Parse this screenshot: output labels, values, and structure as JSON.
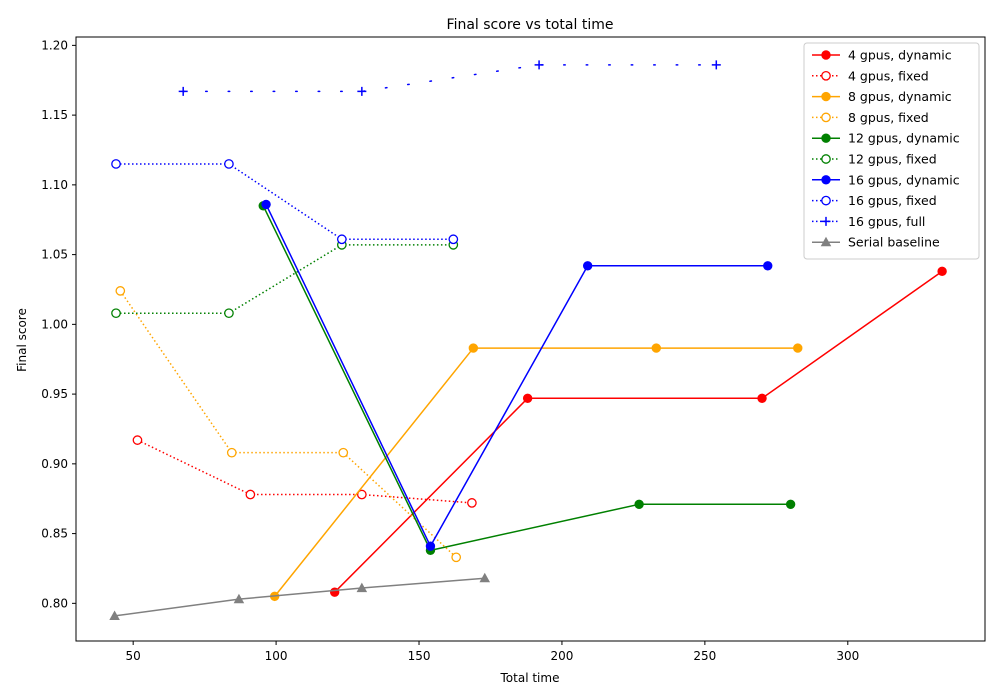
{
  "chart_data": {
    "type": "line",
    "title": "Final score vs total time",
    "xlabel": "Total time",
    "ylabel": "Final score",
    "xlim": [
      30,
      348
    ],
    "ylim": [
      0.773,
      1.206
    ],
    "xticks": [
      50,
      100,
      150,
      200,
      250,
      300
    ],
    "yticks": [
      0.8,
      0.85,
      0.9,
      0.95,
      1.0,
      1.05,
      1.1,
      1.15,
      1.2
    ],
    "grid": false,
    "legend_position": "top-right",
    "series": [
      {
        "name": "4 gpus, dynamic",
        "color": "#ff0000",
        "style": "solid",
        "marker": "circle-filled",
        "points": [
          [
            120.5,
            0.808
          ],
          [
            188,
            0.947
          ],
          [
            270,
            0.947
          ],
          [
            333,
            1.038
          ]
        ]
      },
      {
        "name": "4 gpus, fixed",
        "color": "#ff0000",
        "style": "dotted",
        "marker": "circle-open",
        "points": [
          [
            51.5,
            0.917
          ],
          [
            91,
            0.878
          ],
          [
            130,
            0.878
          ],
          [
            168.5,
            0.872
          ]
        ]
      },
      {
        "name": "8 gpus, dynamic",
        "color": "#ffa500",
        "style": "solid",
        "marker": "circle-filled",
        "points": [
          [
            99.5,
            0.805
          ],
          [
            169,
            0.983
          ],
          [
            233,
            0.983
          ],
          [
            282.5,
            0.983
          ]
        ]
      },
      {
        "name": "8 gpus, fixed",
        "color": "#ffa500",
        "style": "dotted",
        "marker": "circle-open",
        "points": [
          [
            45.5,
            1.024
          ],
          [
            84.5,
            0.908
          ],
          [
            123.5,
            0.908
          ],
          [
            163,
            0.833
          ]
        ]
      },
      {
        "name": "12 gpus, dynamic",
        "color": "#008000",
        "style": "solid",
        "marker": "circle-filled",
        "points": [
          [
            95.5,
            1.085
          ],
          [
            154,
            0.838
          ],
          [
            227,
            0.871
          ],
          [
            280,
            0.871
          ]
        ]
      },
      {
        "name": "12 gpus, fixed",
        "color": "#008000",
        "style": "dotted",
        "marker": "circle-open",
        "points": [
          [
            44,
            1.008
          ],
          [
            83.5,
            1.008
          ],
          [
            123,
            1.057
          ],
          [
            162,
            1.057
          ]
        ]
      },
      {
        "name": "16 gpus, dynamic",
        "color": "#0000ff",
        "style": "solid",
        "marker": "circle-filled",
        "points": [
          [
            96.5,
            1.086
          ],
          [
            154,
            0.841
          ],
          [
            209,
            1.042
          ],
          [
            272,
            1.042
          ]
        ]
      },
      {
        "name": "16 gpus, fixed",
        "color": "#0000ff",
        "style": "dotted",
        "marker": "circle-open",
        "points": [
          [
            44,
            1.115
          ],
          [
            83.5,
            1.115
          ],
          [
            123,
            1.061
          ],
          [
            162,
            1.061
          ]
        ]
      },
      {
        "name": "16 gpus, full",
        "color": "#0000ff",
        "style": "dotted",
        "marker": "plus",
        "points": [
          [
            67.5,
            1.167
          ],
          [
            130,
            1.167
          ],
          [
            192,
            1.186
          ],
          [
            254,
            1.186
          ]
        ]
      },
      {
        "name": "Serial baseline",
        "color": "#808080",
        "style": "solid",
        "marker": "triangle-filled",
        "points": [
          [
            43.5,
            0.791
          ],
          [
            87,
            0.803
          ],
          [
            130,
            0.811
          ],
          [
            173,
            0.818
          ]
        ]
      }
    ]
  }
}
